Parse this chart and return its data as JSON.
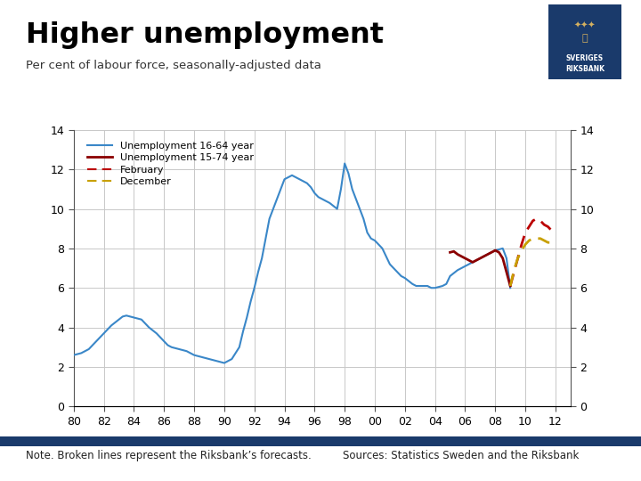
{
  "title": "Higher unemployment",
  "subtitle": "Per cent of labour force, seasonally-adjusted data",
  "note": "Note. Broken lines represent the Riksbank’s forecasts.",
  "sources": "Sources: Statistics Sweden and the Riksbank",
  "background_color": "#ffffff",
  "plot_bg_color": "#ffffff",
  "grid_color": "#c8c8c8",
  "title_color": "#000000",
  "subtitle_color": "#333333",
  "logo_color": "#1a3a6b",
  "xlim": [
    1980,
    2013
  ],
  "ylim": [
    0,
    14
  ],
  "xtick_years": [
    1980,
    1982,
    1984,
    1986,
    1988,
    1990,
    1992,
    1994,
    1996,
    1998,
    2000,
    2002,
    2004,
    2006,
    2008,
    2010,
    2012
  ],
  "xtick_labels": [
    "80",
    "82",
    "84",
    "86",
    "88",
    "90",
    "92",
    "94",
    "96",
    "98",
    "00",
    "02",
    "04",
    "06",
    "08",
    "10",
    "12"
  ],
  "yticks": [
    0,
    2,
    4,
    6,
    8,
    10,
    12,
    14
  ],
  "unemployment_16_64_color": "#3a87c8",
  "unemployment_15_74_color": "#8b0000",
  "forecast_feb_color": "#bb0000",
  "forecast_dec_color": "#c8a000",
  "footer_bar_color": "#1a3a6b",
  "u1664_x": [
    1980.0,
    1980.25,
    1980.5,
    1980.75,
    1981.0,
    1981.25,
    1981.5,
    1981.75,
    1982.0,
    1982.25,
    1982.5,
    1982.75,
    1983.0,
    1983.25,
    1983.5,
    1983.75,
    1984.0,
    1984.25,
    1984.5,
    1984.75,
    1985.0,
    1985.25,
    1985.5,
    1985.75,
    1986.0,
    1986.25,
    1986.5,
    1986.75,
    1987.0,
    1987.25,
    1987.5,
    1987.75,
    1988.0,
    1988.25,
    1988.5,
    1988.75,
    1989.0,
    1989.25,
    1989.5,
    1989.75,
    1990.0,
    1990.25,
    1990.5,
    1990.75,
    1991.0,
    1991.25,
    1991.5,
    1991.75,
    1992.0,
    1992.25,
    1992.5,
    1992.75,
    1993.0,
    1993.25,
    1993.5,
    1993.75,
    1994.0,
    1994.25,
    1994.5,
    1994.75,
    1995.0,
    1995.25,
    1995.5,
    1995.75,
    1996.0,
    1996.25,
    1996.5,
    1996.75,
    1997.0,
    1997.25,
    1997.5,
    1997.75,
    1998.0,
    1998.25,
    1998.5,
    1998.75,
    1999.0,
    1999.25,
    1999.5,
    1999.75,
    2000.0,
    2000.25,
    2000.5,
    2000.75,
    2001.0,
    2001.25,
    2001.5,
    2001.75,
    2002.0,
    2002.25,
    2002.5,
    2002.75,
    2003.0,
    2003.25,
    2003.5,
    2003.75,
    2004.0,
    2004.25,
    2004.5,
    2004.75,
    2005.0,
    2005.25,
    2005.5,
    2005.75,
    2006.0,
    2006.25,
    2006.5,
    2006.75,
    2007.0,
    2007.25,
    2007.5,
    2007.75,
    2008.0,
    2008.25,
    2008.5,
    2008.75,
    2009.0
  ],
  "u1664_y": [
    2.6,
    2.65,
    2.7,
    2.8,
    2.9,
    3.1,
    3.3,
    3.5,
    3.7,
    3.9,
    4.1,
    4.25,
    4.4,
    4.55,
    4.6,
    4.55,
    4.5,
    4.45,
    4.4,
    4.2,
    4.0,
    3.85,
    3.7,
    3.5,
    3.3,
    3.1,
    3.0,
    2.95,
    2.9,
    2.85,
    2.8,
    2.7,
    2.6,
    2.55,
    2.5,
    2.45,
    2.4,
    2.35,
    2.3,
    2.25,
    2.2,
    2.3,
    2.4,
    2.7,
    3.0,
    3.8,
    4.5,
    5.3,
    6.0,
    6.8,
    7.5,
    8.5,
    9.5,
    10.0,
    10.5,
    11.0,
    11.5,
    11.6,
    11.7,
    11.6,
    11.5,
    11.4,
    11.3,
    11.1,
    10.8,
    10.6,
    10.5,
    10.4,
    10.3,
    10.15,
    10.0,
    11.0,
    12.3,
    11.8,
    11.0,
    10.5,
    10.0,
    9.5,
    8.8,
    8.5,
    8.4,
    8.2,
    8.0,
    7.6,
    7.2,
    7.0,
    6.8,
    6.6,
    6.5,
    6.35,
    6.2,
    6.1,
    6.1,
    6.1,
    6.1,
    6.0,
    6.0,
    6.05,
    6.1,
    6.2,
    6.6,
    6.75,
    6.9,
    7.0,
    7.1,
    7.2,
    7.3,
    7.4,
    7.5,
    7.6,
    7.7,
    7.8,
    7.9,
    7.95,
    8.0,
    7.5,
    6.0
  ],
  "u1574_x": [
    2005.0,
    2005.25,
    2005.5,
    2005.75,
    2006.0,
    2006.25,
    2006.5,
    2006.75,
    2007.0,
    2007.25,
    2007.5,
    2007.75,
    2008.0,
    2008.25,
    2008.5,
    2008.75,
    2009.0
  ],
  "u1574_y": [
    7.8,
    7.85,
    7.7,
    7.6,
    7.5,
    7.4,
    7.3,
    7.4,
    7.5,
    7.6,
    7.7,
    7.8,
    7.9,
    7.8,
    7.5,
    6.8,
    6.1
  ],
  "feb_forecast_x": [
    2009.0,
    2009.25,
    2009.5,
    2009.75,
    2010.0,
    2010.25,
    2010.5,
    2010.75,
    2011.0,
    2011.25,
    2011.5,
    2011.75,
    2012.0
  ],
  "feb_forecast_y": [
    6.1,
    6.8,
    7.5,
    8.2,
    8.8,
    9.1,
    9.4,
    9.5,
    9.4,
    9.2,
    9.1,
    8.9,
    8.7
  ],
  "dec_forecast_x": [
    2009.0,
    2009.25,
    2009.5,
    2009.75,
    2010.0,
    2010.25,
    2010.5,
    2010.75,
    2011.0,
    2011.25,
    2011.5,
    2011.75,
    2012.0
  ],
  "dec_forecast_y": [
    6.1,
    6.9,
    7.5,
    7.9,
    8.2,
    8.4,
    8.5,
    8.5,
    8.5,
    8.4,
    8.3,
    8.3,
    8.3
  ]
}
